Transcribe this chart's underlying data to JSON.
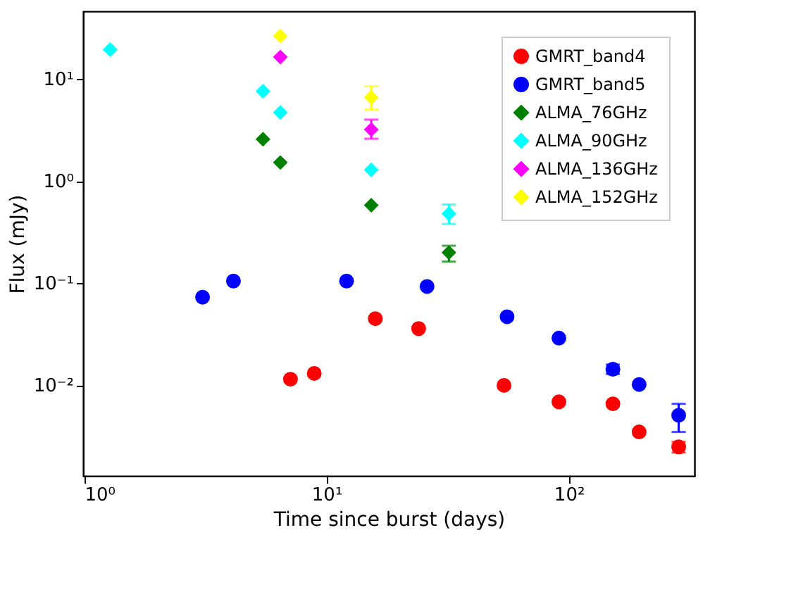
{
  "chart_data": {
    "type": "scatter",
    "xlabel": "Time since burst (days)",
    "ylabel": "Flux (mJy)",
    "log": "xy",
    "grid": false,
    "legend": "top right",
    "xlim": [
      0.99,
      330
    ],
    "ylim": [
      0.0013,
      46
    ],
    "xticks": [
      {
        "value": 1,
        "label": "10⁰"
      },
      {
        "value": 10,
        "label": "10¹"
      },
      {
        "value": 100,
        "label": "10²"
      }
    ],
    "yticks": [
      {
        "value": 0.01,
        "label": "10⁻²"
      },
      {
        "value": 0.1,
        "label": "10⁻¹"
      },
      {
        "value": 1,
        "label": "10⁰"
      },
      {
        "value": 10,
        "label": "10¹"
      }
    ],
    "series": [
      {
        "name": "GMRT_band4",
        "color": "#ff0000",
        "marker": "circle",
        "x": [
          7.1,
          8.9,
          15.9,
          24,
          54,
          91,
          152,
          195,
          284
        ],
        "values": [
          0.0115,
          0.0131,
          0.045,
          0.036,
          0.01,
          0.0069,
          0.0066,
          0.0035,
          0.0025
        ],
        "errors": [
          null,
          null,
          null,
          null,
          null,
          null,
          null,
          null,
          [
            0.0022,
            0.0028
          ]
        ]
      },
      {
        "name": "GMRT_band5",
        "color": "#0000ff",
        "marker": "circle",
        "x": [
          3.08,
          4.13,
          12.1,
          26,
          55.6,
          91,
          152,
          195,
          284
        ],
        "values": [
          0.073,
          0.105,
          0.105,
          0.093,
          0.047,
          0.029,
          0.0144,
          0.0102,
          0.0051
        ],
        "errors": [
          null,
          null,
          null,
          null,
          null,
          null,
          [
            0.0129,
            0.016
          ],
          null,
          [
            0.0035,
            0.0066
          ]
        ]
      },
      {
        "name": "ALMA_76GHz",
        "color": "#008000",
        "marker": "diamond",
        "x": [
          5.47,
          6.45,
          15.3,
          32
        ],
        "values": [
          2.57,
          1.52,
          0.58,
          0.2
        ],
        "errors": [
          null,
          null,
          null,
          [
            0.163,
            0.233
          ]
        ]
      },
      {
        "name": "ALMA_90GHz",
        "color": "#00ffff",
        "marker": "diamond",
        "x": [
          1.28,
          5.47,
          6.45,
          15.3,
          32
        ],
        "values": [
          19.4,
          7.6,
          4.7,
          1.29,
          0.48
        ],
        "errors": [
          null,
          null,
          null,
          null,
          [
            0.38,
            0.59
          ]
        ]
      },
      {
        "name": "ALMA_136GHz",
        "color": "#ff00ff",
        "marker": "diamond",
        "x": [
          6.45,
          15.3
        ],
        "values": [
          16.4,
          3.2
        ],
        "errors": [
          null,
          [
            2.6,
            4.0
          ]
        ]
      },
      {
        "name": "ALMA_152GHz",
        "color": "#ffff00",
        "marker": "diamond",
        "x": [
          6.45,
          15.3
        ],
        "values": [
          26.4,
          6.6
        ],
        "errors": [
          null,
          [
            5.0,
            8.5
          ]
        ]
      }
    ]
  }
}
